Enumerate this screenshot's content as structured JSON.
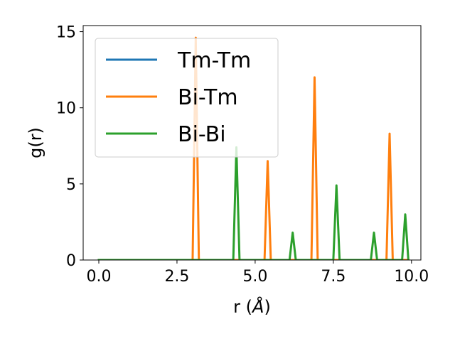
{
  "chart_data": {
    "type": "line",
    "xlabel_main": "r (",
    "xlabel_unit": "Å",
    "xlabel_close": ")",
    "ylabel": "g(r)",
    "xlim": [
      -0.5,
      10.3
    ],
    "ylim": [
      0,
      15.4
    ],
    "xticks": [
      0.0,
      2.5,
      5.0,
      7.5,
      10.0
    ],
    "xtick_labels": [
      "0.0",
      "2.5",
      "5.0",
      "7.5",
      "10.0"
    ],
    "yticks": [
      0,
      5,
      10,
      15
    ],
    "ytick_labels": [
      "0",
      "5",
      "10",
      "15"
    ],
    "grid": false,
    "legend_position": "upper-left",
    "series": [
      {
        "name": "Tm-Tm",
        "color": "#1f77b4",
        "points": [
          [
            0.0,
            0
          ],
          [
            9.9,
            0
          ]
        ]
      },
      {
        "name": "Bi-Tm",
        "color": "#ff7f0e",
        "points": [
          [
            0.0,
            0
          ],
          [
            3.0,
            0
          ],
          [
            3.1,
            14.6
          ],
          [
            3.2,
            0
          ],
          [
            5.3,
            0
          ],
          [
            5.4,
            6.5
          ],
          [
            5.5,
            0
          ],
          [
            6.8,
            0
          ],
          [
            6.9,
            12.0
          ],
          [
            7.0,
            0
          ],
          [
            9.2,
            0
          ],
          [
            9.3,
            8.3
          ],
          [
            9.4,
            0
          ],
          [
            9.9,
            0
          ]
        ]
      },
      {
        "name": "Bi-Bi",
        "color": "#2ca02c",
        "points": [
          [
            0.0,
            0
          ],
          [
            4.3,
            0
          ],
          [
            4.4,
            7.4
          ],
          [
            4.5,
            0
          ],
          [
            6.1,
            0
          ],
          [
            6.2,
            1.8
          ],
          [
            6.3,
            0
          ],
          [
            7.5,
            0
          ],
          [
            7.6,
            4.9
          ],
          [
            7.7,
            0
          ],
          [
            8.7,
            0
          ],
          [
            8.8,
            1.8
          ],
          [
            8.9,
            0
          ],
          [
            9.7,
            0
          ],
          [
            9.8,
            3.0
          ],
          [
            9.9,
            0
          ]
        ]
      }
    ]
  }
}
